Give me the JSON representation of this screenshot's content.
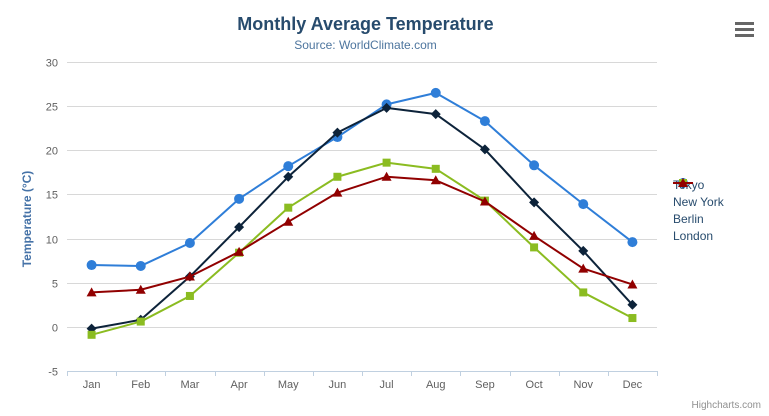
{
  "chart_data": {
    "type": "line",
    "title": "Monthly Average Temperature",
    "subtitle": "Source: WorldClimate.com",
    "xlabel": "",
    "ylabel": "Temperature (°C)",
    "ylim": [
      -5,
      30
    ],
    "ytick_step": 5,
    "grid": true,
    "legend_position": "right",
    "categories": [
      "Jan",
      "Feb",
      "Mar",
      "Apr",
      "May",
      "Jun",
      "Jul",
      "Aug",
      "Sep",
      "Oct",
      "Nov",
      "Dec"
    ],
    "series": [
      {
        "name": "Tokyo",
        "color": "#2f7ed8",
        "marker": "circle",
        "values": [
          7.0,
          6.9,
          9.5,
          14.5,
          18.2,
          21.5,
          25.2,
          26.5,
          23.3,
          18.3,
          13.9,
          9.6
        ]
      },
      {
        "name": "New York",
        "color": "#0d233a",
        "marker": "diamond",
        "values": [
          -0.2,
          0.8,
          5.7,
          11.3,
          17.0,
          22.0,
          24.8,
          24.1,
          20.1,
          14.1,
          8.6,
          2.5
        ]
      },
      {
        "name": "Berlin",
        "color": "#8bbc21",
        "marker": "square",
        "values": [
          -0.9,
          0.6,
          3.5,
          8.4,
          13.5,
          17.0,
          18.6,
          17.9,
          14.3,
          9.0,
          3.9,
          1.0
        ]
      },
      {
        "name": "London",
        "color": "#910000",
        "marker": "triangle",
        "values": [
          3.9,
          4.2,
          5.7,
          8.5,
          11.9,
          15.2,
          17.0,
          16.6,
          14.2,
          10.3,
          6.6,
          4.8
        ]
      }
    ]
  },
  "export_menu": {
    "icon": "hamburger-menu-icon"
  },
  "credits": {
    "label": "Highcharts.com"
  },
  "colors": {
    "title": "#274b6d",
    "subtitle": "#4d759e",
    "axis_labels": "#606060",
    "gridline": "#d8d8d8",
    "axis_line": "#c0d0e0",
    "legend_text": "#274b6d",
    "background": "#ffffff"
  }
}
